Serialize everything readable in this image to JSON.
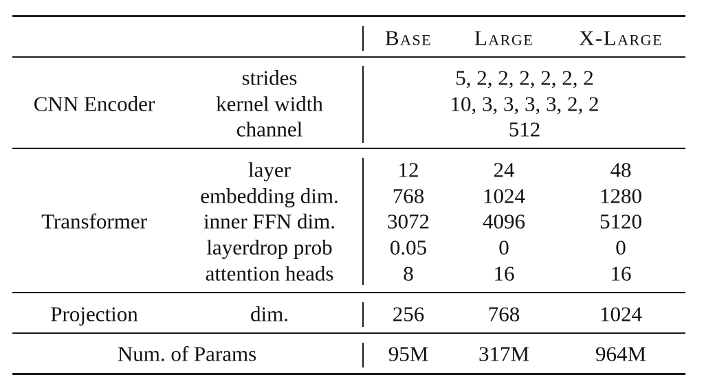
{
  "header": {
    "base": "Base",
    "large": "Large",
    "xlarge": "X-Large"
  },
  "cnn": {
    "group": "CNN Encoder",
    "strides_label": "strides",
    "strides_value": "5, 2, 2, 2, 2, 2, 2",
    "kernel_label": "kernel width",
    "kernel_value": "10, 3, 3, 3, 3, 2, 2",
    "channel_label": "channel",
    "channel_value": "512"
  },
  "transformer": {
    "group": "Transformer",
    "rows": [
      {
        "label": "layer",
        "base": "12",
        "large": "24",
        "xlarge": "48"
      },
      {
        "label": "embedding dim.",
        "base": "768",
        "large": "1024",
        "xlarge": "1280"
      },
      {
        "label": "inner FFN dim.",
        "base": "3072",
        "large": "4096",
        "xlarge": "5120"
      },
      {
        "label": "layerdrop prob",
        "base": "0.05",
        "large": "0",
        "xlarge": "0"
      },
      {
        "label": "attention heads",
        "base": "8",
        "large": "16",
        "xlarge": "16"
      }
    ]
  },
  "projection": {
    "group": "Projection",
    "label": "dim.",
    "base": "256",
    "large": "768",
    "xlarge": "1024"
  },
  "params": {
    "label": "Num. of Params",
    "base": "95M",
    "large": "317M",
    "xlarge": "964M"
  }
}
